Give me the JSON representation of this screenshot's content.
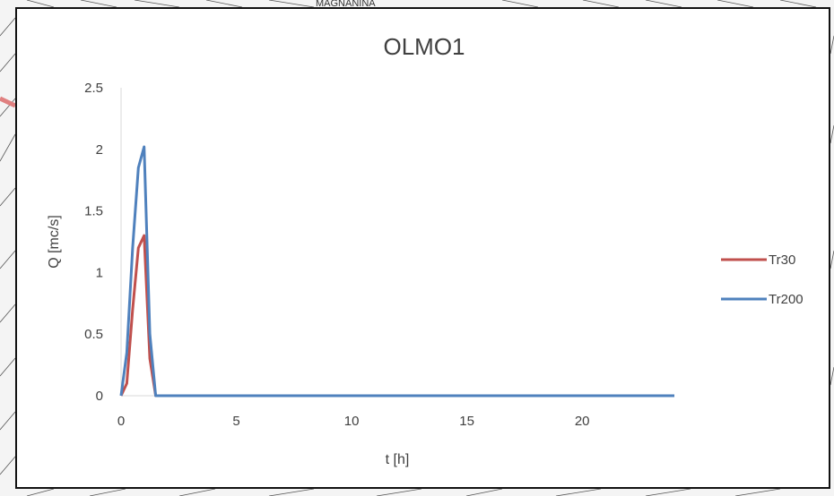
{
  "background": {
    "map_text": "MAGNANINA"
  },
  "chart_data": {
    "type": "line",
    "title": "OLMO1",
    "xlabel": "t [h]",
    "ylabel": "Q [mc/s]",
    "xlim": [
      0,
      24
    ],
    "ylim": [
      0,
      2.5
    ],
    "x_ticks": [
      0,
      5,
      10,
      15,
      20
    ],
    "x_tick_labels": [
      "0",
      "5",
      "10",
      "15",
      "20"
    ],
    "y_ticks": [
      0,
      0.5,
      1,
      1.5,
      2,
      2.5
    ],
    "y_tick_labels": [
      "0",
      "0.5",
      "1",
      "1.5",
      "2",
      "2.5"
    ],
    "grid": false,
    "legend_position": "right",
    "series": [
      {
        "name": "Tr30",
        "color": "#c0504d",
        "x": [
          0,
          0.25,
          0.5,
          0.75,
          1.0,
          1.25,
          1.5,
          24
        ],
        "y": [
          0,
          0.1,
          0.7,
          1.2,
          1.3,
          0.3,
          0,
          0
        ]
      },
      {
        "name": "Tr200",
        "color": "#4f81bd",
        "x": [
          0,
          0.25,
          0.5,
          0.75,
          1.0,
          1.25,
          1.5,
          24
        ],
        "y": [
          0,
          0.35,
          1.2,
          1.85,
          2.02,
          0.5,
          0,
          0
        ]
      }
    ]
  }
}
